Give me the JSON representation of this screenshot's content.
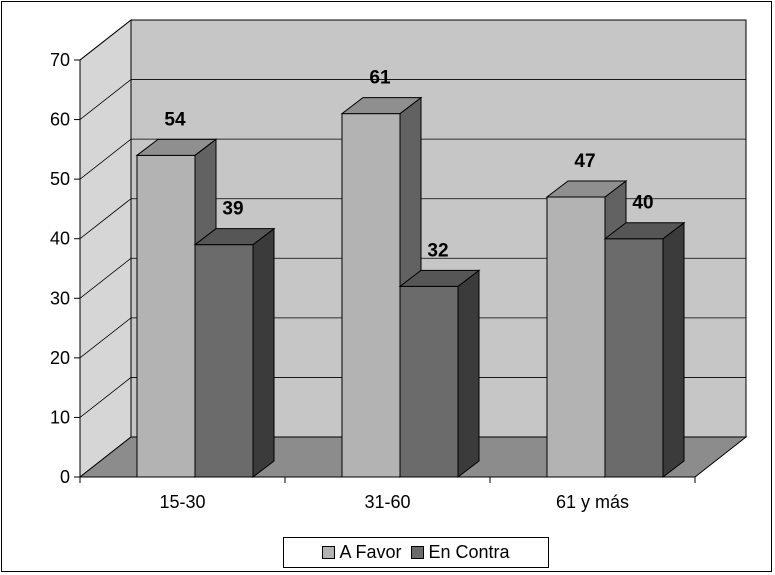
{
  "chart_data": {
    "type": "bar",
    "categories": [
      "15-30",
      "31-60",
      "61 y más"
    ],
    "series": [
      {
        "name": "A Favor",
        "values": [
          54,
          61,
          47
        ],
        "color": "#b3b3b3"
      },
      {
        "name": "En Contra",
        "values": [
          39,
          32,
          40
        ],
        "color": "#6b6b6b"
      }
    ],
    "ylim": [
      0,
      70
    ],
    "yticks": [
      "0",
      "10",
      "20",
      "30",
      "40",
      "50",
      "60",
      "70"
    ],
    "data_labels": true,
    "legend": "bottom",
    "grid": true,
    "style": "3d"
  }
}
